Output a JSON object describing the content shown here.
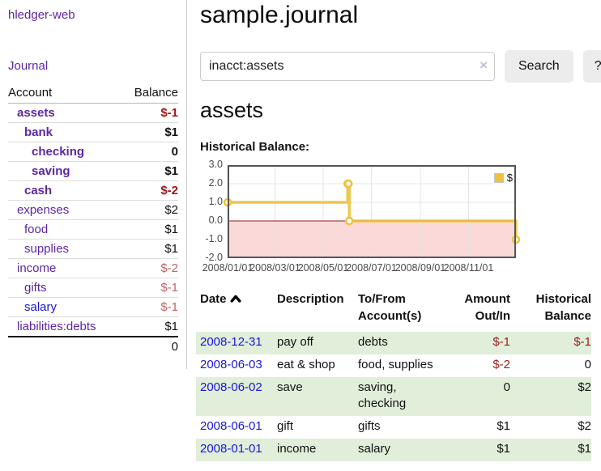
{
  "sidebar": {
    "app_title": "hledger-web",
    "nav": [
      {
        "label": "Journal"
      }
    ],
    "accounts_table": {
      "headers": [
        "Account",
        "Balance"
      ],
      "rows": [
        {
          "name": "assets",
          "depth": 0,
          "bold": true,
          "link": "visited",
          "balance": "$-1",
          "balance_style": "neg-strong"
        },
        {
          "name": "bank",
          "depth": 1,
          "bold": true,
          "link": "visited",
          "balance": "$1",
          "balance_style": "pos"
        },
        {
          "name": "checking",
          "depth": 2,
          "bold": true,
          "link": "visited",
          "balance": "0",
          "balance_style": "pos"
        },
        {
          "name": "saving",
          "depth": 2,
          "bold": true,
          "link": "visited",
          "balance": "$1",
          "balance_style": "pos"
        },
        {
          "name": "cash",
          "depth": 1,
          "bold": true,
          "link": "visited",
          "balance": "$-2",
          "balance_style": "neg-strong"
        },
        {
          "name": "expenses",
          "depth": 0,
          "bold": false,
          "link": "visited",
          "balance": "$2",
          "balance_style": "pos"
        },
        {
          "name": "food",
          "depth": 1,
          "bold": false,
          "link": "visited",
          "balance": "$1",
          "balance_style": "pos"
        },
        {
          "name": "supplies",
          "depth": 1,
          "bold": false,
          "link": "visited",
          "balance": "$1",
          "balance_style": "pos"
        },
        {
          "name": "income",
          "depth": 0,
          "bold": false,
          "link": "visited",
          "balance": "$-2",
          "balance_style": "neg-soft"
        },
        {
          "name": "gifts",
          "depth": 1,
          "bold": false,
          "link": "visited",
          "balance": "$-1",
          "balance_style": "neg-soft"
        },
        {
          "name": "salary",
          "depth": 1,
          "bold": false,
          "link": "new",
          "balance": "$-1",
          "balance_style": "neg-soft"
        },
        {
          "name": "liabilities:debts",
          "depth": 0,
          "bold": false,
          "link": "visited",
          "balance": "$1",
          "balance_style": "pos"
        }
      ],
      "total": "0"
    }
  },
  "header": {
    "title": "sample.journal"
  },
  "search": {
    "value": "inacct:assets",
    "clear_icon": "×",
    "button_label": "Search",
    "help_label": "?"
  },
  "account_page": {
    "heading": "assets",
    "chart_label": "Historical Balance:"
  },
  "chart_data": {
    "type": "line",
    "step": true,
    "title": "Historical Balance",
    "series": [
      {
        "name": "$",
        "color": "#edc240",
        "points": [
          [
            "2008-01-01",
            1
          ],
          [
            "2008-06-01",
            2
          ],
          [
            "2008-06-02",
            2
          ],
          [
            "2008-06-03",
            0
          ],
          [
            "2008-12-31",
            -1
          ]
        ]
      }
    ],
    "x_range": [
      "2008-01-01",
      "2008-12-31"
    ],
    "x_ticks": [
      "2008/01/01",
      "2008/03/01",
      "2008/05/01",
      "2008/07/01",
      "2008/09/01",
      "2008/11/01"
    ],
    "y_ticks": [
      "3.0",
      "2.0",
      "1.0",
      "0.0",
      "-1.0",
      "-2.0"
    ],
    "ylim": [
      -2,
      3
    ],
    "grid": true,
    "negative_region_color": "#fbd9d9",
    "zero_line_color": "#8f1d1d",
    "grid_color": "#e4e4e4",
    "border_color": "#545454",
    "legend": {
      "label": "$",
      "position": "top-right"
    }
  },
  "transactions": {
    "headers": {
      "date": "Date",
      "description": "Description",
      "accounts": "To/From Account(s)",
      "amount": "Amount Out/In",
      "balance": "Historical Balance"
    },
    "sort": {
      "column": "date",
      "direction": "asc"
    },
    "rows": [
      {
        "date": "2008-12-31",
        "description": "pay off",
        "accounts": "debts",
        "amount": "$-1",
        "amount_negative": true,
        "balance": "$-1",
        "balance_negative": true,
        "shaded": true
      },
      {
        "date": "2008-06-03",
        "description": "eat & shop",
        "accounts": "food, supplies",
        "amount": "$-2",
        "amount_negative": true,
        "balance": "0",
        "balance_negative": false,
        "shaded": false
      },
      {
        "date": "2008-06-02",
        "description": "save",
        "accounts": "saving, checking",
        "amount": "0",
        "amount_negative": false,
        "balance": "$2",
        "balance_negative": false,
        "shaded": true
      },
      {
        "date": "2008-06-01",
        "description": "gift",
        "accounts": "gifts",
        "amount": "$1",
        "amount_negative": false,
        "balance": "$2",
        "balance_negative": false,
        "shaded": false
      },
      {
        "date": "2008-01-01",
        "description": "income",
        "accounts": "salary",
        "amount": "$1",
        "amount_negative": false,
        "balance": "$1",
        "balance_negative": false,
        "shaded": true
      }
    ]
  },
  "colors": {
    "link_purple": "#5c26a3",
    "link_blue": "#1a16d9",
    "negative_strong": "#a01616",
    "negative_soft": "#c06363",
    "row_shade_green": "#e0eeda",
    "series_gold": "#edc240"
  }
}
